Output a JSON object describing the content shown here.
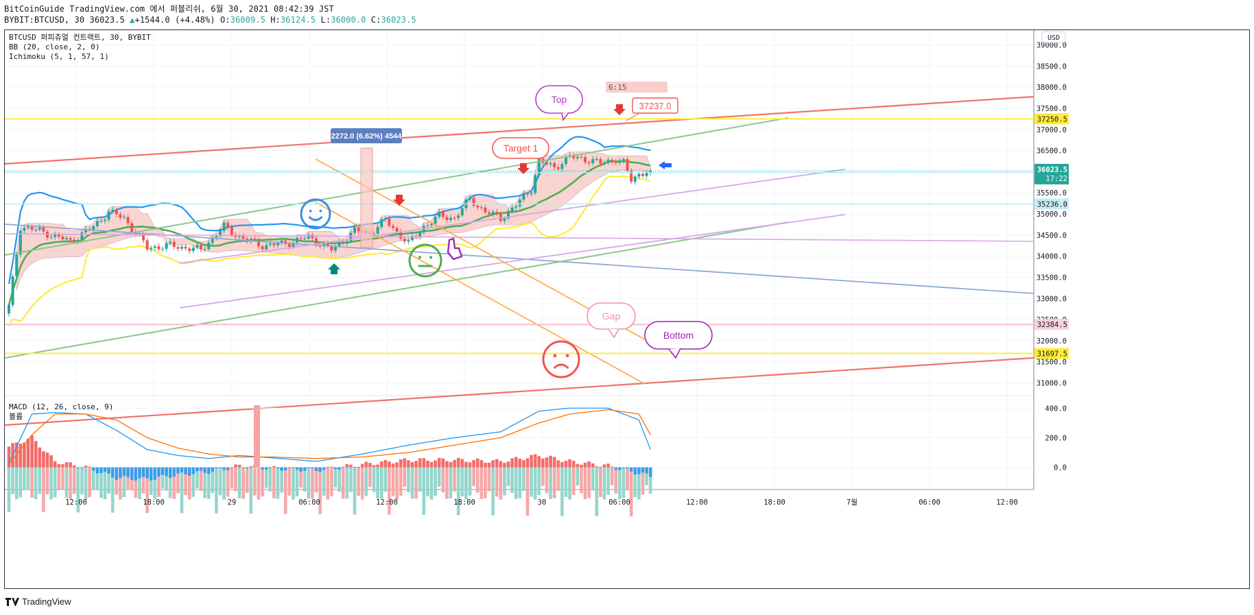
{
  "header": {
    "line1": "BitCoinGuide TradingView.com 에서 퍼블리쉬, 6월 30, 2021 08:42:39 JST",
    "symbol": "BYBIT:BTCUSD, 30 36023.5",
    "change": "+1544.0 (+4.48%)",
    "o_label": "O:",
    "o": "36009.5",
    "h_label": "H:",
    "h": "36124.5",
    "l_label": "L:",
    "l": "36000.0",
    "c_label": "C:",
    "c": "36023.5"
  },
  "legend": {
    "title": "BTCUSD 퍼피츄얼 컨트랙트, 30, BYBIT",
    "bb": "BB (20, close, 2, 0)",
    "ichimoku": "Ichimoku (5, 1, 57, 1)",
    "macd": "MACD (12, 26, close, 9)",
    "volume": "볼륨"
  },
  "currency": "USD",
  "footer": {
    "brand": "TradingView"
  },
  "colors": {
    "up": "#26a69a",
    "down": "#ef5350",
    "bb_upper": "#2196f3",
    "bb_basis": "#4caf50",
    "bb_lower": "#ffeb3b",
    "cloud": "#f7c6c0",
    "red_line": "#f07267",
    "green_line": "#8bc68a",
    "orange_line": "#ffac4d",
    "violet_line": "#d6a6e6",
    "blue_line": "#90b8f0"
  },
  "chart_data": {
    "type": "candlestick",
    "symbol": "BYBIT:BTCUSD",
    "interval": "30",
    "ylim": [
      30700,
      39350
    ],
    "y_ticks": [
      39000,
      38500,
      38000,
      37500,
      37000,
      36500,
      36000,
      35500,
      35000,
      34500,
      34000,
      33500,
      33000,
      32500,
      32000,
      31500,
      31000
    ],
    "x_ticks": [
      "12:00",
      "18:00",
      "29",
      "06:00",
      "12:00",
      "18:00",
      "30",
      "06:00",
      "12:00",
      "18:00",
      "7월",
      "06:00",
      "12:00"
    ],
    "last_price": "36023.5",
    "countdown": "17:22",
    "price_labels": [
      {
        "value": "37250.5",
        "kind": "yellow"
      },
      {
        "value": "35979.0",
        "kind": "cyan"
      },
      {
        "value": "35236.0",
        "kind": "cyan"
      },
      {
        "value": "32384.5",
        "kind": "pink"
      },
      {
        "value": "31697.5",
        "kind": "yellow"
      }
    ],
    "horizontal_lines": [
      37250.5,
      36023.5,
      35979.0,
      35236.0,
      32384.5,
      31697.5
    ],
    "candle_anchors": [
      {
        "t": 0,
        "p": 32800
      },
      {
        "t": 3,
        "p": 34700
      },
      {
        "t": 8,
        "p": 34600
      },
      {
        "t": 16,
        "p": 34350
      },
      {
        "t": 22,
        "p": 34700
      },
      {
        "t": 26,
        "p": 35050
      },
      {
        "t": 30,
        "p": 34900
      },
      {
        "t": 36,
        "p": 34200
      },
      {
        "t": 42,
        "p": 34250
      },
      {
        "t": 50,
        "p": 34150
      },
      {
        "t": 56,
        "p": 34700
      },
      {
        "t": 60,
        "p": 34450
      },
      {
        "t": 66,
        "p": 34250
      },
      {
        "t": 72,
        "p": 34300
      },
      {
        "t": 78,
        "p": 34450
      },
      {
        "t": 84,
        "p": 34150
      },
      {
        "t": 90,
        "p": 34600
      },
      {
        "t": 94,
        "p": 34550
      },
      {
        "t": 98,
        "p": 34850
      },
      {
        "t": 104,
        "p": 34300
      },
      {
        "t": 108,
        "p": 34700
      },
      {
        "t": 112,
        "p": 34950
      },
      {
        "t": 116,
        "p": 34900
      },
      {
        "t": 120,
        "p": 35350
      },
      {
        "t": 124,
        "p": 35050
      },
      {
        "t": 128,
        "p": 34900
      },
      {
        "t": 132,
        "p": 35200
      },
      {
        "t": 136,
        "p": 35600
      },
      {
        "t": 138,
        "p": 36250
      },
      {
        "t": 142,
        "p": 36100
      },
      {
        "t": 146,
        "p": 36350
      },
      {
        "t": 150,
        "p": 36300
      },
      {
        "t": 154,
        "p": 36200
      },
      {
        "t": 158,
        "p": 36300
      },
      {
        "t": 160,
        "p": 36200
      },
      {
        "t": 162,
        "p": 35800
      },
      {
        "t": 164,
        "p": 35950
      },
      {
        "t": 167,
        "p": 36023
      }
    ],
    "annotations": [
      {
        "text": "Top",
        "color": "#b43cc4"
      },
      {
        "text": "37237.0",
        "color": "#ef5350"
      },
      {
        "text": "Target 1",
        "color": "#ef5350"
      },
      {
        "text": "Gap",
        "color": "#f48fb1"
      },
      {
        "text": "Bottom",
        "color": "#9c27b0"
      },
      {
        "text": "6:15",
        "color": "#e57373"
      },
      {
        "text": "2272.0 (6.62%) 4544",
        "color": "#5b7fc1"
      }
    ],
    "macd_ticks": [
      400.0,
      200.0,
      0.0
    ],
    "macd_ticks_text": [
      "400.0",
      "200.0",
      "0.0"
    ],
    "macd_anchors": [
      {
        "t": 0,
        "macd": 30,
        "signal": 20,
        "hist": 140
      },
      {
        "t": 6,
        "macd": 360,
        "signal": 220,
        "hist": 200
      },
      {
        "t": 12,
        "macd": 370,
        "signal": 360,
        "hist": 40
      },
      {
        "t": 20,
        "macd": 360,
        "signal": 360,
        "hist": 0
      },
      {
        "t": 28,
        "macd": 250,
        "signal": 320,
        "hist": -70
      },
      {
        "t": 36,
        "macd": 120,
        "signal": 200,
        "hist": -80
      },
      {
        "t": 44,
        "macd": 80,
        "signal": 130,
        "hist": -50
      },
      {
        "t": 52,
        "macd": 60,
        "signal": 90,
        "hist": -30
      },
      {
        "t": 60,
        "macd": 80,
        "signal": 70,
        "hist": 10
      },
      {
        "t": 68,
        "macd": 65,
        "signal": 70,
        "hist": -5
      },
      {
        "t": 80,
        "macd": 40,
        "signal": 60,
        "hist": -20
      },
      {
        "t": 92,
        "macd": 90,
        "signal": 70,
        "hist": 20
      },
      {
        "t": 104,
        "macd": 150,
        "signal": 100,
        "hist": 50
      },
      {
        "t": 116,
        "macd": 200,
        "signal": 150,
        "hist": 50
      },
      {
        "t": 128,
        "macd": 240,
        "signal": 200,
        "hist": 40
      },
      {
        "t": 138,
        "macd": 380,
        "signal": 300,
        "hist": 80
      },
      {
        "t": 146,
        "macd": 400,
        "signal": 360,
        "hist": 40
      },
      {
        "t": 156,
        "macd": 400,
        "signal": 390,
        "hist": 10
      },
      {
        "t": 164,
        "macd": 320,
        "signal": 360,
        "hist": -40
      },
      {
        "t": 167,
        "macd": 120,
        "signal": 220,
        "hist": -60
      }
    ]
  }
}
